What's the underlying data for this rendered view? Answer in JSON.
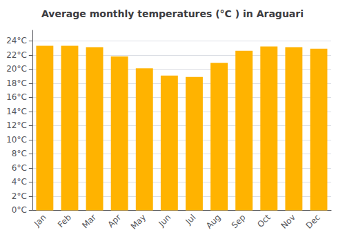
{
  "chart_data": {
    "type": "bar",
    "title": "Average monthly temperatures (°C ) in Araguari",
    "categories": [
      "Jan",
      "Feb",
      "Mar",
      "Apr",
      "May",
      "Jun",
      "Jul",
      "Aug",
      "Sep",
      "Oct",
      "Nov",
      "Dec"
    ],
    "values": [
      23.3,
      23.3,
      23.1,
      21.8,
      20.1,
      19.1,
      18.9,
      20.9,
      22.6,
      23.2,
      23.1,
      22.9
    ],
    "color": "#FFB300",
    "ylim": [
      0,
      25.5
    ],
    "yticks": [
      {
        "value": 0,
        "label": "0°C"
      },
      {
        "value": 2,
        "label": "2°C"
      },
      {
        "value": 4,
        "label": "4°C"
      },
      {
        "value": 6,
        "label": "6°C"
      },
      {
        "value": 8,
        "label": "8°C"
      },
      {
        "value": 10,
        "label": "10°C"
      },
      {
        "value": 12,
        "label": "12°C"
      },
      {
        "value": 14,
        "label": "14°C"
      },
      {
        "value": 16,
        "label": "16°C"
      },
      {
        "value": 18,
        "label": "18°C"
      },
      {
        "value": 20,
        "label": "20°C"
      },
      {
        "value": 22,
        "label": "22°C"
      },
      {
        "value": 24,
        "label": "24°C"
      }
    ],
    "grid": true
  }
}
